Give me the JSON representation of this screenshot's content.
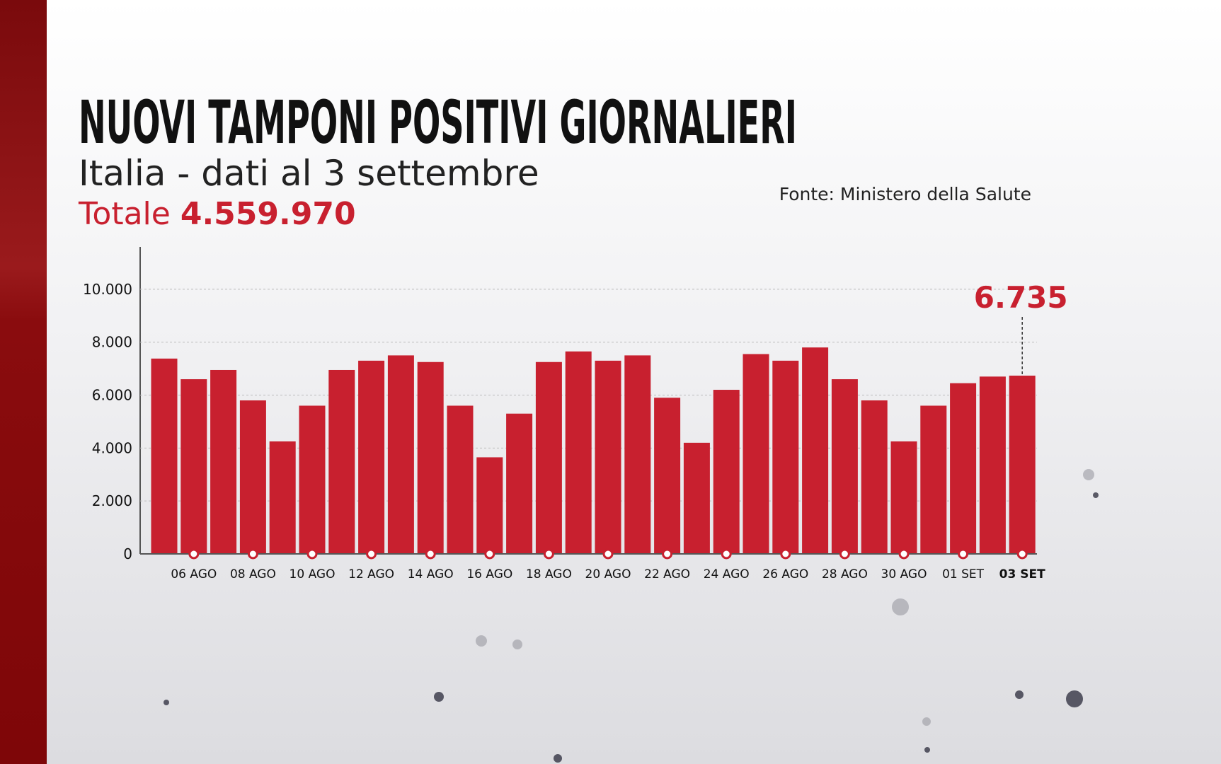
{
  "chart_data": {
    "type": "bar",
    "title": "NUOVI TAMPONI POSITIVI GIORNALIERI",
    "subtitle": "Italia - dati al 3 settembre",
    "total_label": "Totale",
    "total_value": "4.559.970",
    "source": "Fonte: Ministero della Salute",
    "categories": [
      null,
      "06 AGO",
      null,
      "08 AGO",
      null,
      "10 AGO",
      null,
      "12 AGO",
      null,
      "14 AGO",
      null,
      "16 AGO",
      null,
      "18 AGO",
      null,
      "20 AGO",
      null,
      "22 AGO",
      null,
      "24 AGO",
      null,
      "26 AGO",
      null,
      "28 AGO",
      null,
      "30 AGO",
      null,
      "01 SET",
      null,
      "03 SET"
    ],
    "values": [
      7380,
      6600,
      6950,
      5800,
      4250,
      5600,
      6950,
      7300,
      7500,
      7250,
      5600,
      3650,
      5300,
      7250,
      7650,
      7300,
      7500,
      5900,
      4200,
      6200,
      7550,
      7300,
      7800,
      6600,
      5800,
      4250,
      5600,
      6450,
      6700,
      6735
    ],
    "value_labels": [
      null,
      null,
      null,
      null,
      null,
      null,
      null,
      null,
      null,
      null,
      null,
      null,
      null,
      null,
      null,
      null,
      null,
      null,
      null,
      null,
      null,
      null,
      null,
      null,
      null,
      null,
      null,
      null,
      null,
      "6.735"
    ],
    "color": "#c8202f",
    "ylim": [
      0,
      11600
    ],
    "yticks": [
      0,
      {
        "value": 2000,
        "label": "2.000"
      },
      {
        "value": 4000,
        "label": "4.000"
      },
      {
        "value": 6000,
        "label": "6.000"
      },
      {
        "value": 8000,
        "label": "8.000"
      },
      {
        "value": 10000,
        "label": "10.000"
      }
    ],
    "grid": true
  }
}
